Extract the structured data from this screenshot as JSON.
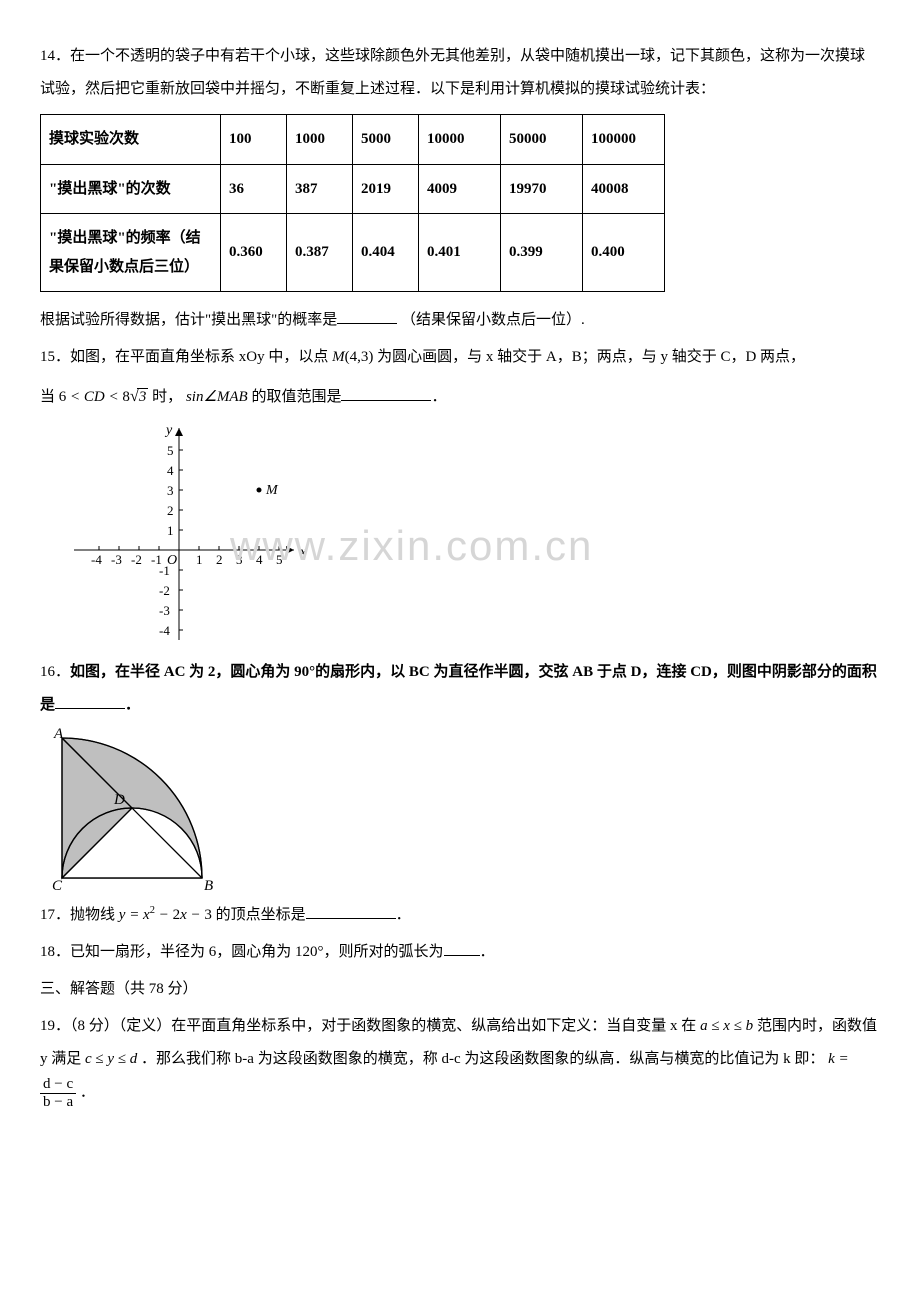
{
  "q14": {
    "num": "14．",
    "text1": "在一个不透明的袋子中有若干个小球，这些球除颜色外无其他差别，从袋中随机摸出一球，记下其颜色，这称为一次摸球试验，然后把它重新放回袋中并摇匀，不断重复上述过程．以下是利用计算机模拟的摸球试验统计表：",
    "row_headers": [
      "摸球实验次数",
      "\"摸出黑球\"的次数",
      "\"摸出黑球\"的频率（结果保留小数点后三位）"
    ],
    "cols": [
      "100",
      "1000",
      "5000",
      "10000",
      "50000",
      "100000"
    ],
    "counts": [
      "36",
      "387",
      "2019",
      "4009",
      "19970",
      "40008"
    ],
    "freqs": [
      "0.360",
      "0.387",
      "0.404",
      "0.401",
      "0.399",
      "0.400"
    ],
    "text2_a": "根据试验所得数据，估计\"摸出黑球\"的概率是",
    "text2_b": "（结果保留小数点后一位）."
  },
  "q15": {
    "num": "15．",
    "text_a": "如图，在平面直角坐标系 xOy 中，以点",
    "m_point": "M(4,3)",
    "text_b": "为圆心画圆，与 x 轴交于 A，B；两点，与 y 轴交于 C，D 两点，",
    "text_c_a": "当",
    "ineq_left": "6 < CD < 8",
    "sqrt_val": "3",
    "text_c_b": "时，",
    "sin_expr": "sin∠MAB",
    "text_c_c": "的取值范围是",
    "text_c_d": "．",
    "axis": {
      "x_ticks": [
        "-4",
        "-3",
        "-2",
        "-1",
        "1",
        "2",
        "3",
        "4",
        "5"
      ],
      "y_ticks_pos": [
        "1",
        "2",
        "3",
        "4",
        "5"
      ],
      "y_ticks_neg": [
        "-1",
        "-2",
        "-3",
        "-4"
      ],
      "O": "O",
      "xlabel": "x",
      "ylabel": "y",
      "M": "M",
      "M_pos": [
        4,
        3
      ]
    },
    "watermark": "www.zixin.com.cn"
  },
  "q16": {
    "num": "16．",
    "text_a": "如图，在半径 AC 为 2，圆心角为 90°的扇形内，以 BC 为直径作半圆，交弦 AB 于点 D，连接 CD，则图中阴影部分的面积是",
    "text_b": "．",
    "labels": {
      "A": "A",
      "B": "B",
      "C": "C",
      "D": "D"
    },
    "colors": {
      "shade": "#bfbfbf",
      "stroke": "#000",
      "bg": "#fff"
    }
  },
  "q17": {
    "num": "17．",
    "text_a": "抛物线 ",
    "eq": "y = x² − 2x − 3",
    "text_b": " 的顶点坐标是",
    "text_c": "．"
  },
  "q18": {
    "num": "18．",
    "text": "已知一扇形，半径为 6，圆心角为 120°，则所对的弧长为",
    "tail": "．"
  },
  "section3": "三、解答题（共 78 分）",
  "q19": {
    "num": "19．",
    "points": "（8 分）",
    "def_label": "（定义）",
    "text_a": "在平面直角坐标系中，对于函数图象的横宽、纵高给出如下定义：当自变量 x 在",
    "ineq": "a ≤ x ≤ b",
    "text_b": "范围内时，函数值 y 满足",
    "ineq2": "c ≤ y ≤ d",
    "text_c": "．那么我们称 b-a 为这段函数图象的横宽，称 d-c 为这段函数图象的纵高．纵高与横宽的比值记为 k 即：",
    "k_eq_left": "k = ",
    "frac_num": "d − c",
    "frac_den": "b − a",
    "tail": "．"
  }
}
